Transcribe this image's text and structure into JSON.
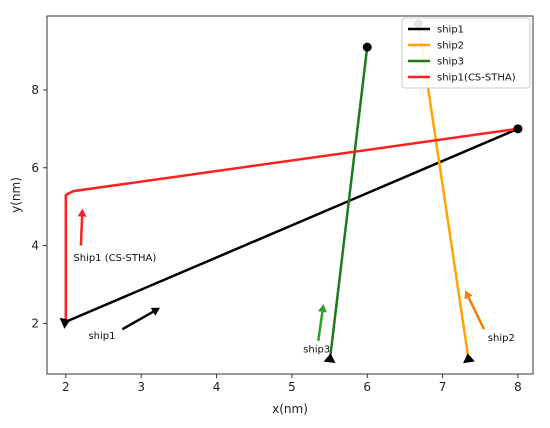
{
  "chart_data": {
    "type": "line",
    "xlabel": "x(nm)",
    "ylabel": "y(nm)",
    "xlim": [
      1.75,
      8.2
    ],
    "ylim": [
      0.7,
      9.9
    ],
    "xticks": [
      2,
      3,
      4,
      5,
      6,
      7,
      8
    ],
    "yticks": [
      2,
      4,
      6,
      8
    ],
    "grid": false,
    "legend_position": "top-right",
    "series": [
      {
        "name": "ship1",
        "color": "#000000",
        "x": [
          1.95,
          8.0
        ],
        "y": [
          2.0,
          7.0
        ],
        "start_marker": "triangle",
        "end_marker": "circle"
      },
      {
        "name": "ship2",
        "color": "#FFA500",
        "x": [
          7.35,
          6.68
        ],
        "y": [
          1.0,
          9.7
        ],
        "start_marker": "triangle",
        "end_marker": "circle"
      },
      {
        "name": "ship3",
        "color": "#1B7A1B",
        "x": [
          5.5,
          6.0
        ],
        "y": [
          1.0,
          9.1
        ],
        "start_marker": "triangle",
        "end_marker": "circle"
      },
      {
        "name": "ship1(CS-STHA)",
        "color": "#FF2020",
        "x": [
          2.0,
          2.0,
          2.1,
          8.0
        ],
        "y": [
          2.0,
          5.3,
          5.4,
          7.0
        ],
        "start_marker": "none",
        "end_marker": "none"
      }
    ],
    "annotations": [
      {
        "text": "ship1",
        "x": 2.3,
        "y": 1.6,
        "arrow_from": [
          2.75,
          1.85
        ],
        "arrow_to": [
          3.25,
          2.4
        ],
        "color": "#000000"
      },
      {
        "text": "ship2",
        "x": 7.6,
        "y": 1.55,
        "arrow_from": [
          7.55,
          1.85
        ],
        "arrow_to": [
          7.3,
          2.85
        ],
        "color": "#F07F00"
      },
      {
        "text": "ship3",
        "x": 5.15,
        "y": 1.25,
        "arrow_from": [
          5.35,
          1.55
        ],
        "arrow_to": [
          5.42,
          2.5
        ],
        "color": "#2E9E2E"
      },
      {
        "text": "Ship1 (CS-STHA)",
        "x": 2.1,
        "y": 3.6,
        "arrow_from": [
          2.2,
          4.0
        ],
        "arrow_to": [
          2.22,
          4.95
        ],
        "color": "#FF2020"
      }
    ]
  }
}
